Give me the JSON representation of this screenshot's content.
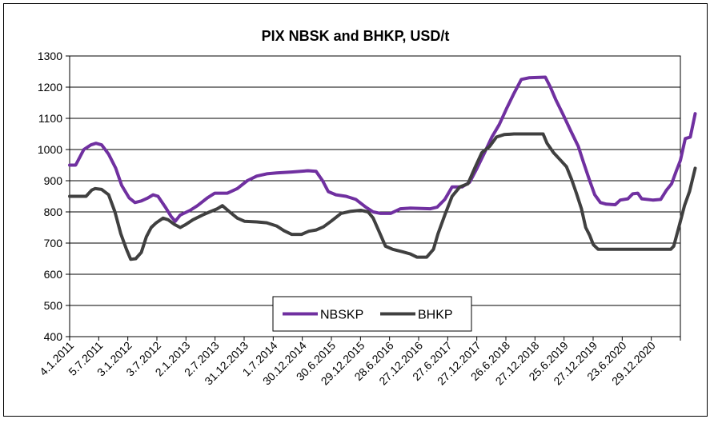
{
  "chart_data": {
    "type": "line",
    "title": "PIX NBSK and BHKP, USD/t",
    "xlabel": "",
    "ylabel": "",
    "ylim": [
      400,
      1300
    ],
    "yticks": [
      400,
      500,
      600,
      700,
      800,
      900,
      1000,
      1100,
      1200,
      1300
    ],
    "grid": "horizontal",
    "legend": "bottom-center",
    "xtick_labels": [
      "4.1.2011",
      "5.7.2011",
      "3.1.2012",
      "3.7.2012",
      "2.1.2013",
      "2.7.2013",
      "31.12.2013",
      "1.7.2014",
      "30.12.2014",
      "30.6.2015",
      "29.12.2015",
      "28.6.2016",
      "27.12.2016",
      "27.6.2017",
      "27.12.2017",
      "26.6.2018",
      "27.12.2018",
      "25.6.2019",
      "27.12.2019",
      "23.6.2020",
      "29.12.2020"
    ],
    "x_start": "2011-01-04",
    "x_end": "2021-04-20",
    "series": [
      {
        "name": "NBSKP",
        "color": "#7030a0",
        "points": [
          [
            "2011-01-04",
            950
          ],
          [
            "2011-02-10",
            950
          ],
          [
            "2011-04-01",
            1000
          ],
          [
            "2011-05-15",
            1015
          ],
          [
            "2011-06-15",
            1020
          ],
          [
            "2011-07-20",
            1015
          ],
          [
            "2011-09-01",
            985
          ],
          [
            "2011-10-15",
            940
          ],
          [
            "2011-11-20",
            885
          ],
          [
            "2012-01-05",
            845
          ],
          [
            "2012-02-10",
            830
          ],
          [
            "2012-03-20",
            835
          ],
          [
            "2012-05-01",
            845
          ],
          [
            "2012-06-01",
            855
          ],
          [
            "2012-07-01",
            850
          ],
          [
            "2012-08-15",
            815
          ],
          [
            "2012-09-20",
            785
          ],
          [
            "2012-10-15",
            770
          ],
          [
            "2012-11-15",
            790
          ],
          [
            "2013-01-15",
            805
          ],
          [
            "2013-03-01",
            820
          ],
          [
            "2013-05-01",
            845
          ],
          [
            "2013-06-15",
            860
          ],
          [
            "2013-09-01",
            860
          ],
          [
            "2013-11-01",
            875
          ],
          [
            "2014-01-01",
            900
          ],
          [
            "2014-03-01",
            915
          ],
          [
            "2014-05-01",
            922
          ],
          [
            "2014-07-01",
            925
          ],
          [
            "2014-10-01",
            928
          ],
          [
            "2015-01-10",
            932
          ],
          [
            "2015-03-01",
            930
          ],
          [
            "2015-04-10",
            900
          ],
          [
            "2015-05-15",
            865
          ],
          [
            "2015-07-01",
            855
          ],
          [
            "2015-09-01",
            850
          ],
          [
            "2015-11-01",
            840
          ],
          [
            "2016-01-01",
            815
          ],
          [
            "2016-02-15",
            800
          ],
          [
            "2016-04-01",
            795
          ],
          [
            "2016-06-01",
            795
          ],
          [
            "2016-08-01",
            810
          ],
          [
            "2016-10-01",
            812
          ],
          [
            "2017-02-01",
            810
          ],
          [
            "2017-03-15",
            815
          ],
          [
            "2017-05-01",
            840
          ],
          [
            "2017-06-15",
            880
          ],
          [
            "2017-08-15",
            880
          ],
          [
            "2017-10-01",
            895
          ],
          [
            "2017-11-15",
            940
          ],
          [
            "2018-01-01",
            990
          ],
          [
            "2018-02-15",
            1040
          ],
          [
            "2018-04-01",
            1080
          ],
          [
            "2018-05-15",
            1130
          ],
          [
            "2018-07-01",
            1180
          ],
          [
            "2018-08-15",
            1225
          ],
          [
            "2018-10-01",
            1230
          ],
          [
            "2019-01-10",
            1232
          ],
          [
            "2019-02-10",
            1200
          ],
          [
            "2019-03-15",
            1160
          ],
          [
            "2019-05-01",
            1110
          ],
          [
            "2019-06-15",
            1060
          ],
          [
            "2019-08-01",
            1010
          ],
          [
            "2019-09-01",
            960
          ],
          [
            "2019-10-10",
            900
          ],
          [
            "2019-11-10",
            855
          ],
          [
            "2019-12-15",
            830
          ],
          [
            "2020-01-20",
            825
          ],
          [
            "2020-03-15",
            823
          ],
          [
            "2020-04-15",
            838
          ],
          [
            "2020-06-01",
            842
          ],
          [
            "2020-07-01",
            858
          ],
          [
            "2020-08-01",
            860
          ],
          [
            "2020-08-25",
            842
          ],
          [
            "2020-11-01",
            838
          ],
          [
            "2020-12-20",
            840
          ],
          [
            "2021-01-25",
            870
          ],
          [
            "2021-02-25",
            890
          ],
          [
            "2021-03-25",
            930
          ],
          [
            "2021-04-20",
            965
          ],
          [
            "2021-05-20",
            1035
          ],
          [
            "2021-06-20",
            1040
          ],
          [
            "2021-07-20",
            1115
          ]
        ]
      },
      {
        "name": "BHKP",
        "color": "#404040",
        "points": [
          [
            "2011-01-04",
            850
          ],
          [
            "2011-04-15",
            850
          ],
          [
            "2011-05-20",
            870
          ],
          [
            "2011-06-10",
            875
          ],
          [
            "2011-07-20",
            872
          ],
          [
            "2011-09-01",
            855
          ],
          [
            "2011-10-10",
            800
          ],
          [
            "2011-11-15",
            730
          ],
          [
            "2011-12-20",
            680
          ],
          [
            "2012-01-15",
            648
          ],
          [
            "2012-02-15",
            650
          ],
          [
            "2012-03-20",
            670
          ],
          [
            "2012-04-20",
            720
          ],
          [
            "2012-05-20",
            750
          ],
          [
            "2012-06-20",
            765
          ],
          [
            "2012-08-01",
            780
          ],
          [
            "2012-09-01",
            775
          ],
          [
            "2012-10-10",
            760
          ],
          [
            "2012-11-15",
            750
          ],
          [
            "2012-12-20",
            760
          ],
          [
            "2013-02-01",
            775
          ],
          [
            "2013-04-01",
            790
          ],
          [
            "2013-05-15",
            800
          ],
          [
            "2013-07-01",
            810
          ],
          [
            "2013-08-01",
            820
          ],
          [
            "2013-09-15",
            800
          ],
          [
            "2013-11-01",
            780
          ],
          [
            "2013-12-15",
            770
          ],
          [
            "2014-03-01",
            768
          ],
          [
            "2014-05-01",
            765
          ],
          [
            "2014-07-01",
            755
          ],
          [
            "2014-08-15",
            740
          ],
          [
            "2014-10-01",
            728
          ],
          [
            "2014-12-01",
            728
          ],
          [
            "2015-01-15",
            738
          ],
          [
            "2015-03-01",
            742
          ],
          [
            "2015-04-15",
            752
          ],
          [
            "2015-06-01",
            770
          ],
          [
            "2015-08-01",
            795
          ],
          [
            "2015-10-01",
            802
          ],
          [
            "2015-12-01",
            805
          ],
          [
            "2016-01-15",
            800
          ],
          [
            "2016-02-15",
            780
          ],
          [
            "2016-03-20",
            740
          ],
          [
            "2016-05-01",
            690
          ],
          [
            "2016-06-15",
            680
          ],
          [
            "2016-08-15",
            672
          ],
          [
            "2016-10-01",
            665
          ],
          [
            "2016-11-10",
            655
          ],
          [
            "2017-01-10",
            655
          ],
          [
            "2017-02-20",
            680
          ],
          [
            "2017-03-20",
            730
          ],
          [
            "2017-05-01",
            790
          ],
          [
            "2017-06-15",
            850
          ],
          [
            "2017-08-01",
            880
          ],
          [
            "2017-09-20",
            890
          ],
          [
            "2017-11-01",
            940
          ],
          [
            "2017-12-15",
            990
          ],
          [
            "2018-02-01",
            1010
          ],
          [
            "2018-03-15",
            1040
          ],
          [
            "2018-05-01",
            1048
          ],
          [
            "2018-07-01",
            1050
          ],
          [
            "2018-12-27",
            1050
          ],
          [
            "2019-01-20",
            1020
          ],
          [
            "2019-03-01",
            990
          ],
          [
            "2019-04-15",
            965
          ],
          [
            "2019-05-20",
            945
          ],
          [
            "2019-06-20",
            905
          ],
          [
            "2019-07-20",
            860
          ],
          [
            "2019-08-20",
            810
          ],
          [
            "2019-09-15",
            750
          ],
          [
            "2019-10-10",
            725
          ],
          [
            "2019-11-01",
            695
          ],
          [
            "2019-12-01",
            680
          ],
          [
            "2020-01-01",
            680
          ],
          [
            "2020-06-01",
            680
          ],
          [
            "2020-12-01",
            680
          ],
          [
            "2021-02-20",
            680
          ],
          [
            "2021-03-10",
            690
          ],
          [
            "2021-04-15",
            760
          ],
          [
            "2021-05-15",
            820
          ],
          [
            "2021-06-15",
            865
          ],
          [
            "2021-07-20",
            940
          ]
        ]
      }
    ]
  }
}
